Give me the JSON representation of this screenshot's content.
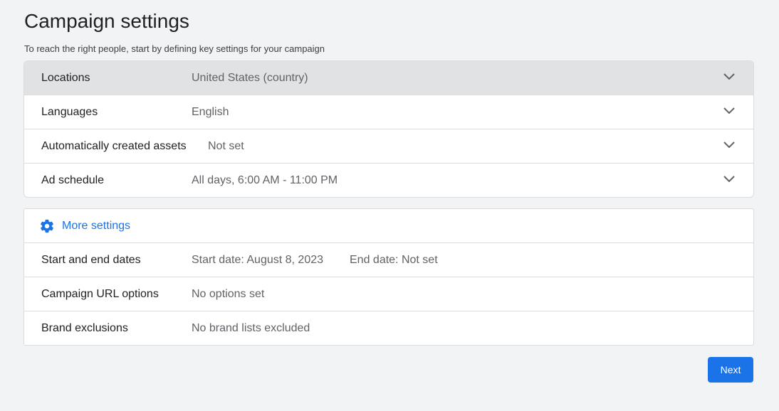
{
  "header": {
    "title": "Campaign settings",
    "subtitle": "To reach the right people, start by defining key settings for your campaign"
  },
  "settings": [
    {
      "label": "Locations",
      "value": "United States (country)"
    },
    {
      "label": "Languages",
      "value": "English"
    },
    {
      "label": "Automatically created assets",
      "value": "Not set"
    },
    {
      "label": "Ad schedule",
      "value": "All days, 6:00 AM - 11:00 PM"
    }
  ],
  "more_settings": {
    "label": "More settings",
    "icon": "gear-icon",
    "rows": [
      {
        "label": "Start and end dates",
        "value": "Start date: August 8, 2023",
        "value2": "End date: Not set"
      },
      {
        "label": "Campaign URL options",
        "value": "No options set"
      },
      {
        "label": "Brand exclusions",
        "value": "No brand lists excluded"
      }
    ]
  },
  "actions": {
    "next_label": "Next"
  },
  "colors": {
    "accent": "#1a73e8",
    "background": "#f1f3f4",
    "active_row": "#e0e2e3"
  }
}
